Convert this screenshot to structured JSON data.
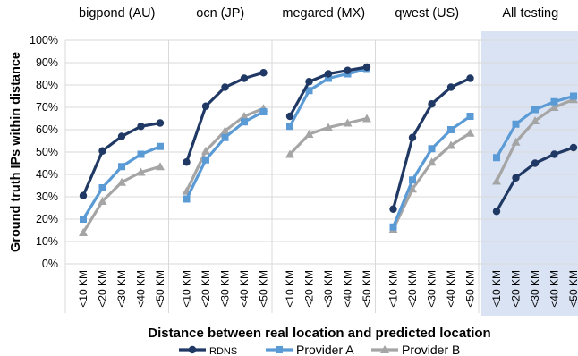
{
  "chart_data": {
    "type": "line",
    "xlabel": "Distance between real location and predicted location",
    "ylabel": "Ground truth IPs within distance",
    "y_ticks": [
      "0%",
      "10%",
      "20%",
      "30%",
      "40%",
      "50%",
      "60%",
      "70%",
      "80%",
      "90%",
      "100%"
    ],
    "ylim": [
      0,
      100
    ],
    "grid": true,
    "legend_position": "bottom",
    "categories": [
      "<10 KM",
      "<20 KM",
      "<30 KM",
      "<40 KM",
      "<50 KM"
    ],
    "colors": {
      "RDNS": "#203864",
      "Provider A": "#5b9bd5",
      "Provider B": "#a5a5a5",
      "highlight_panel": "#dae3f3"
    },
    "legend": [
      "RDNS",
      "Provider A",
      "Provider B"
    ],
    "panels": [
      {
        "title": "bigpond (AU)",
        "highlighted": false,
        "series": [
          {
            "name": "RDNS",
            "values": [
              30.5,
              50.5,
              57,
              61.5,
              63
            ]
          },
          {
            "name": "Provider A",
            "values": [
              20,
              34,
              43.5,
              49,
              52.5
            ]
          },
          {
            "name": "Provider B",
            "values": [
              14,
              28,
              36.5,
              41,
              43.5
            ]
          }
        ]
      },
      {
        "title": "ocn (JP)",
        "highlighted": false,
        "series": [
          {
            "name": "RDNS",
            "values": [
              45.5,
              70.5,
              79,
              83,
              85.5
            ]
          },
          {
            "name": "Provider A",
            "values": [
              29,
              46.5,
              56.5,
              63.5,
              68
            ]
          },
          {
            "name": "Provider B",
            "values": [
              32.5,
              50.5,
              59.5,
              66,
              69.5
            ]
          }
        ]
      },
      {
        "title": "megared (MX)",
        "highlighted": false,
        "series": [
          {
            "name": "RDNS",
            "values": [
              66,
              81.5,
              85,
              86.5,
              88
            ]
          },
          {
            "name": "Provider A",
            "values": [
              61.5,
              77.5,
              83,
              85,
              87
            ]
          },
          {
            "name": "Provider B",
            "values": [
              49,
              58,
              61,
              63,
              65
            ]
          }
        ]
      },
      {
        "title": "qwest (US)",
        "highlighted": false,
        "series": [
          {
            "name": "RDNS",
            "values": [
              24.5,
              56.5,
              71.5,
              79,
              83
            ]
          },
          {
            "name": "Provider A",
            "values": [
              16.5,
              37.5,
              51.5,
              60,
              66
            ]
          },
          {
            "name": "Provider B",
            "values": [
              15.5,
              33.5,
              45.5,
              53,
              58.5
            ]
          }
        ]
      },
      {
        "title": "All testing",
        "highlighted": true,
        "series": [
          {
            "name": "RDNS",
            "values": [
              23.5,
              38.5,
              45,
              49,
              52
            ]
          },
          {
            "name": "Provider A",
            "values": [
              47.5,
              62.5,
              69,
              72.5,
              75
            ]
          },
          {
            "name": "Provider B",
            "values": [
              37,
              54.5,
              64,
              70,
              73.5
            ]
          }
        ]
      }
    ]
  }
}
